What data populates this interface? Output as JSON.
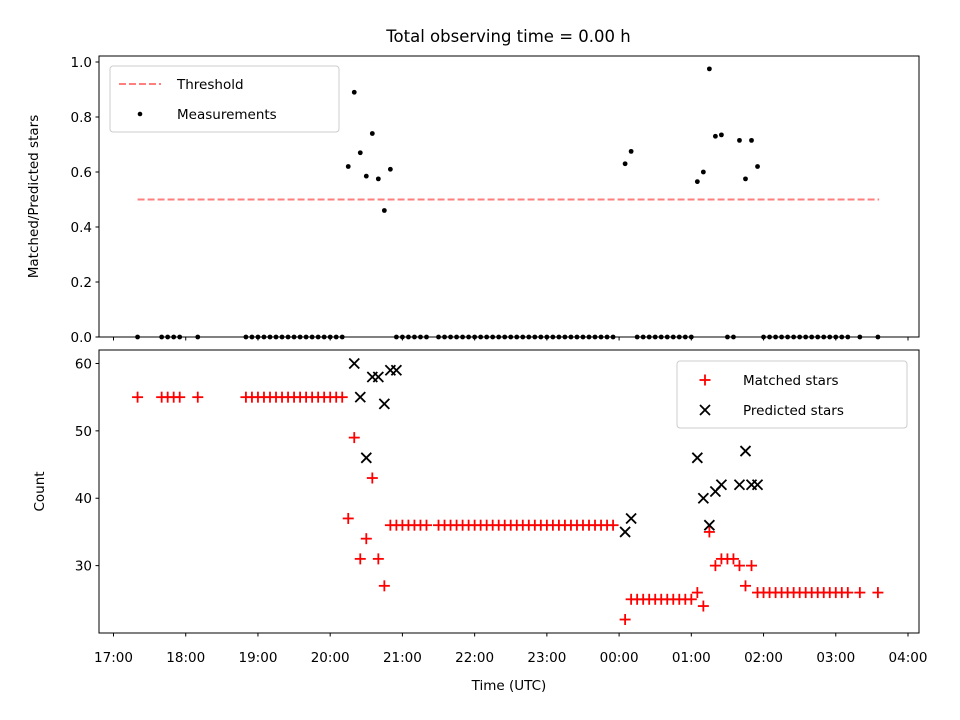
{
  "title": "Total observing time = 0.00 h",
  "colors": {
    "threshold": "#ff7f7f",
    "measurement": "#000000",
    "matched": "#ff0000",
    "predicted": "#000000"
  },
  "chart_data": [
    {
      "type": "scatter",
      "ylabel": "Matched/Predicted stars",
      "ylim": [
        0,
        1.0
      ],
      "yticks": [
        "0.0",
        "0.2",
        "0.4",
        "0.6",
        "0.8",
        "1.0"
      ],
      "legend": {
        "placement": "top-left",
        "entries": [
          "Threshold",
          "Measurements"
        ]
      },
      "threshold": {
        "name": "Threshold",
        "value": 0.5,
        "x_start": "17:20",
        "x_end": "03:36"
      },
      "series": [
        {
          "name": "Measurements",
          "x": [
            "17:20",
            "17:40",
            "17:45",
            "17:50",
            "17:55",
            "18:10",
            "18:50",
            "18:55",
            "19:00",
            "19:05",
            "19:10",
            "19:15",
            "19:20",
            "19:25",
            "19:30",
            "19:35",
            "19:40",
            "19:45",
            "19:50",
            "19:55",
            "20:00",
            "20:05",
            "20:10",
            "20:15",
            "20:20",
            "20:25",
            "20:30",
            "20:35",
            "20:40",
            "20:45",
            "20:50",
            "20:55",
            "21:00",
            "21:05",
            "21:10",
            "21:15",
            "21:20",
            "21:30",
            "21:35",
            "21:40",
            "21:45",
            "21:50",
            "21:55",
            "22:00",
            "22:05",
            "22:10",
            "22:15",
            "22:20",
            "22:25",
            "22:30",
            "22:35",
            "22:40",
            "22:45",
            "22:50",
            "22:55",
            "23:00",
            "23:05",
            "23:10",
            "23:15",
            "23:20",
            "23:25",
            "23:30",
            "23:35",
            "23:40",
            "23:45",
            "23:50",
            "23:55",
            "00:05",
            "00:10",
            "00:15",
            "00:20",
            "00:25",
            "00:30",
            "00:35",
            "00:40",
            "00:45",
            "00:50",
            "00:55",
            "01:00",
            "01:05",
            "01:10",
            "01:15",
            "01:20",
            "01:25",
            "01:30",
            "01:35",
            "01:40",
            "01:45",
            "01:50",
            "01:55",
            "02:00",
            "02:05",
            "02:10",
            "02:15",
            "02:20",
            "02:25",
            "02:30",
            "02:35",
            "02:40",
            "02:45",
            "02:50",
            "02:55",
            "03:00",
            "03:05",
            "03:10",
            "03:20",
            "03:35"
          ],
          "y": [
            0,
            0,
            0,
            0,
            0,
            0,
            0,
            0,
            0,
            0,
            0,
            0,
            0,
            0,
            0,
            0,
            0,
            0,
            0,
            0,
            0,
            0,
            0,
            0.62,
            0.89,
            0.67,
            0.585,
            0.74,
            0.575,
            0.46,
            0.61,
            0,
            0,
            0,
            0,
            0,
            0,
            0,
            0,
            0,
            0,
            0,
            0,
            0,
            0,
            0,
            0,
            0,
            0,
            0,
            0,
            0,
            0,
            0,
            0,
            0,
            0,
            0,
            0,
            0,
            0,
            0,
            0,
            0,
            0,
            0,
            0,
            0.63,
            0.675,
            0,
            0,
            0,
            0,
            0,
            0,
            0,
            0,
            0,
            0,
            0.565,
            0.6,
            0.975,
            0.73,
            0.735,
            0,
            0,
            0.715,
            0.575,
            0.715,
            0.62,
            0,
            0,
            0,
            0,
            0,
            0,
            0,
            0,
            0,
            0,
            0,
            0,
            0,
            0,
            0,
            0,
            0
          ]
        }
      ]
    },
    {
      "type": "scatter",
      "xlabel": "Time (UTC)",
      "ylabel": "Count",
      "ylim": [
        20,
        62
      ],
      "yticks": [
        "30",
        "40",
        "50",
        "60"
      ],
      "xticks": [
        "17:00",
        "18:00",
        "19:00",
        "20:00",
        "21:00",
        "22:00",
        "23:00",
        "00:00",
        "01:00",
        "02:00",
        "03:00",
        "04:00"
      ],
      "legend": {
        "placement": "top-right",
        "entries": [
          "Matched stars",
          "Predicted stars"
        ]
      },
      "series": [
        {
          "name": "Matched stars",
          "x": [
            "17:20",
            "17:40",
            "17:45",
            "17:50",
            "17:55",
            "18:10",
            "18:50",
            "18:55",
            "19:00",
            "19:05",
            "19:10",
            "19:15",
            "19:20",
            "19:25",
            "19:30",
            "19:35",
            "19:40",
            "19:45",
            "19:50",
            "19:55",
            "20:00",
            "20:05",
            "20:10",
            "20:15",
            "20:20",
            "20:25",
            "20:30",
            "20:35",
            "20:40",
            "20:45",
            "20:50",
            "20:55",
            "21:00",
            "21:05",
            "21:10",
            "21:15",
            "21:20",
            "21:30",
            "21:35",
            "21:40",
            "21:45",
            "21:50",
            "21:55",
            "22:00",
            "22:05",
            "22:10",
            "22:15",
            "22:20",
            "22:25",
            "22:30",
            "22:35",
            "22:40",
            "22:45",
            "22:50",
            "22:55",
            "23:00",
            "23:05",
            "23:10",
            "23:15",
            "23:20",
            "23:25",
            "23:30",
            "23:35",
            "23:40",
            "23:45",
            "23:50",
            "23:55",
            "00:05",
            "00:10",
            "00:15",
            "00:20",
            "00:25",
            "00:30",
            "00:35",
            "00:40",
            "00:45",
            "00:50",
            "00:55",
            "01:00",
            "01:05",
            "01:10",
            "01:15",
            "01:20",
            "01:25",
            "01:30",
            "01:35",
            "01:40",
            "01:45",
            "01:50",
            "01:55",
            "02:00",
            "02:05",
            "02:10",
            "02:15",
            "02:20",
            "02:25",
            "02:30",
            "02:35",
            "02:40",
            "02:45",
            "02:50",
            "02:55",
            "03:00",
            "03:05",
            "03:10",
            "03:20",
            "03:35"
          ],
          "y": [
            55,
            55,
            55,
            55,
            55,
            55,
            55,
            55,
            55,
            55,
            55,
            55,
            55,
            55,
            55,
            55,
            55,
            55,
            55,
            55,
            55,
            55,
            55,
            37,
            49,
            31,
            34,
            43,
            31,
            27,
            36,
            36,
            36,
            36,
            36,
            36,
            36,
            36,
            36,
            36,
            36,
            36,
            36,
            36,
            36,
            36,
            36,
            36,
            36,
            36,
            36,
            36,
            36,
            36,
            36,
            36,
            36,
            36,
            36,
            36,
            36,
            36,
            36,
            36,
            36,
            36,
            36,
            22,
            25,
            25,
            25,
            25,
            25,
            25,
            25,
            25,
            25,
            25,
            25,
            26,
            24,
            35,
            30,
            31,
            31,
            31,
            30,
            27,
            30,
            26,
            26,
            26,
            26,
            26,
            26,
            26,
            26,
            26,
            26,
            26,
            26,
            26,
            26,
            26,
            26,
            26,
            26
          ]
        },
        {
          "name": "Predicted stars",
          "x": [
            "20:20",
            "20:25",
            "20:30",
            "20:35",
            "20:40",
            "20:45",
            "20:50",
            "20:55",
            "00:05",
            "00:10",
            "01:05",
            "01:10",
            "01:15",
            "01:20",
            "01:25",
            "01:40",
            "01:45",
            "01:50",
            "01:55"
          ],
          "y": [
            60,
            55,
            46,
            58,
            58,
            54,
            59,
            59,
            35,
            37,
            46,
            40,
            36,
            41,
            42,
            42,
            47,
            42,
            42
          ]
        }
      ]
    }
  ]
}
